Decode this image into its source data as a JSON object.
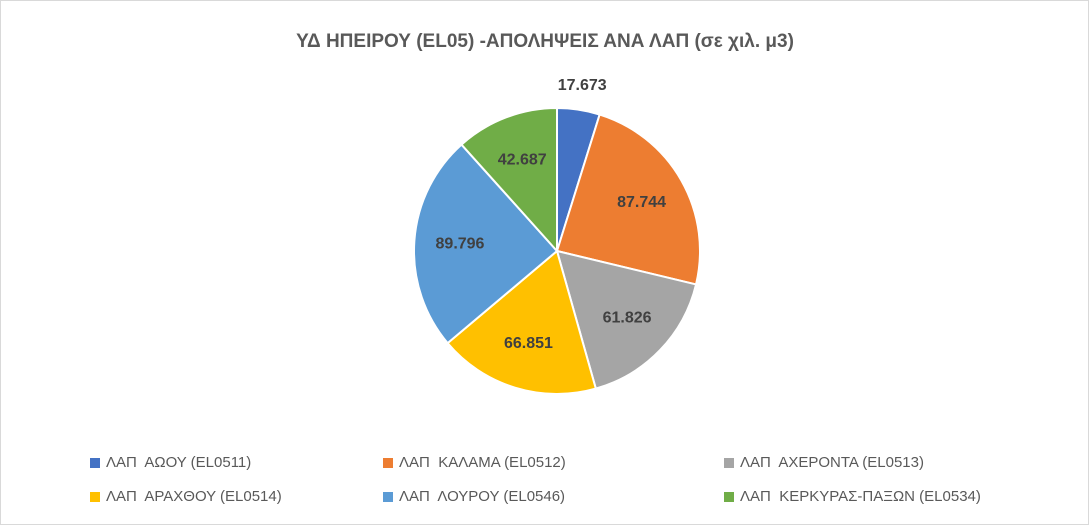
{
  "chart_data": {
    "type": "pie",
    "title": "ΥΔ ΗΠΕΙΡΟΥ (EL05) -ΑΠΟΛΗΨΕΙΣ ΑΝΑ ΛΑΠ (σε χιλ. μ3)",
    "categories": [
      "ΛΑΠ  ΑΩΟΥ (EL0511)",
      "ΛΑΠ  ΚΑΛΑΜΑ (EL0512)",
      "ΛΑΠ  ΑΧΕΡΟΝΤΑ (EL0513)",
      "ΛΑΠ  ΑΡΑΧΘΟΥ (EL0514)",
      "ΛΑΠ  ΛΟΥΡΟΥ (EL0546)",
      "ΛΑΠ  ΚΕΡΚΥΡΑΣ-ΠΑΞΩΝ (EL0534)"
    ],
    "values": [
      17.673,
      87.744,
      61.826,
      66.851,
      89.796,
      42.687
    ],
    "colors": [
      "#4472c4",
      "#ed7d31",
      "#a5a5a5",
      "#ffc000",
      "#5b9bd5",
      "#70ad47"
    ],
    "legend": "bottom"
  }
}
